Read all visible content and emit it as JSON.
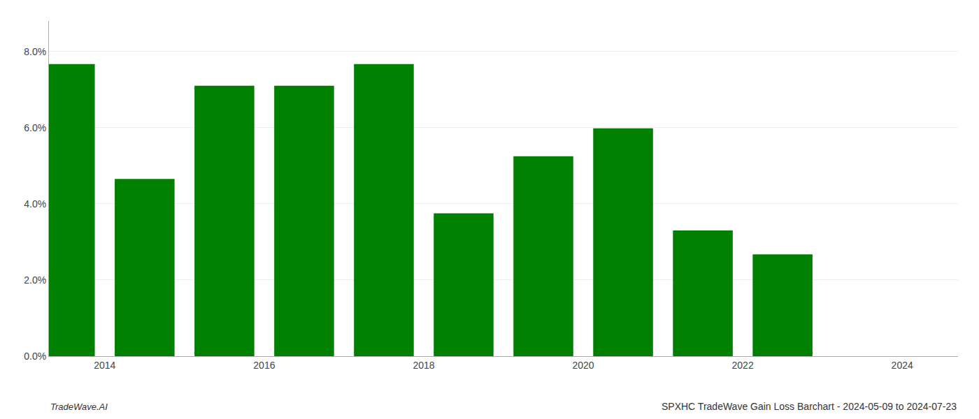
{
  "chart_data": {
    "type": "bar",
    "title": "SPXHC TradeWave Gain Loss Barchart - 2024-05-09 to 2024-07-23",
    "annotations": [
      "TradeWave.AI"
    ],
    "x": [
      2014,
      2015,
      2016,
      2017,
      2018,
      2019,
      2020,
      2021,
      2022,
      2023
    ],
    "values": [
      0.0767,
      0.0465,
      0.071,
      0.071,
      0.0767,
      0.0375,
      0.0525,
      0.0598,
      0.033,
      0.0267
    ],
    "color": "#008000",
    "xlim": [
      2013.3,
      2024.7
    ],
    "xticks": [
      2014,
      2016,
      2018,
      2020,
      2022,
      2024
    ],
    "ylim": [
      0,
      0.088
    ],
    "yticks": [
      {
        "value": 0,
        "label": "0.0%"
      },
      {
        "value": 0.02,
        "label": "2.0%"
      },
      {
        "value": 0.04,
        "label": "4.0%"
      },
      {
        "value": 0.06,
        "label": "6.0%"
      },
      {
        "value": 0.08,
        "label": "8.0%"
      }
    ],
    "grid": "y"
  }
}
